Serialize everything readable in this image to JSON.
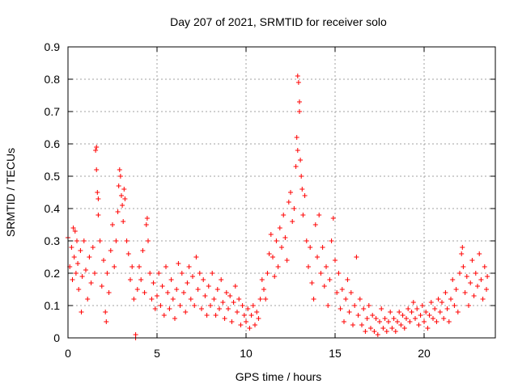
{
  "chart_data": {
    "type": "scatter",
    "title": "Day 207 of 2021, SRMTID for receiver solo",
    "xlabel": "GPS time / hours",
    "ylabel": "SRMTID / TECUs",
    "xlim": [
      0,
      24
    ],
    "ylim": [
      0,
      0.9
    ],
    "xticks": [
      0,
      5,
      10,
      15,
      20
    ],
    "yticks": [
      0,
      0.1,
      0.2,
      0.3,
      0.4,
      0.5,
      0.6,
      0.7,
      0.8,
      0.9
    ],
    "xtick_labels": [
      "0",
      "5",
      "10",
      "15",
      "20"
    ],
    "ytick_labels": [
      "0",
      "0.1",
      "0.2",
      "0.3",
      "0.4",
      "0.5",
      "0.6",
      "0.7",
      "0.8",
      "0.9"
    ],
    "grid": true,
    "marker": "+",
    "color": "#ff0000",
    "series": [
      {
        "name": "SRMTID",
        "points": [
          [
            0.0,
            0.31
          ],
          [
            0.1,
            0.22
          ],
          [
            0.2,
            0.28
          ],
          [
            0.25,
            0.18
          ],
          [
            0.3,
            0.34
          ],
          [
            0.35,
            0.25
          ],
          [
            0.4,
            0.33
          ],
          [
            0.45,
            0.2
          ],
          [
            0.5,
            0.3
          ],
          [
            0.55,
            0.23
          ],
          [
            0.6,
            0.15
          ],
          [
            0.7,
            0.27
          ],
          [
            0.75,
            0.08
          ],
          [
            0.8,
            0.19
          ],
          [
            0.9,
            0.3
          ],
          [
            1.0,
            0.21
          ],
          [
            1.1,
            0.12
          ],
          [
            1.2,
            0.25
          ],
          [
            1.3,
            0.17
          ],
          [
            1.4,
            0.28
          ],
          [
            1.5,
            0.2
          ],
          [
            1.55,
            0.58
          ],
          [
            1.6,
            0.59
          ],
          [
            1.6,
            0.52
          ],
          [
            1.65,
            0.45
          ],
          [
            1.7,
            0.43
          ],
          [
            1.7,
            0.38
          ],
          [
            1.8,
            0.3
          ],
          [
            1.9,
            0.16
          ],
          [
            2.0,
            0.24
          ],
          [
            2.1,
            0.08
          ],
          [
            2.15,
            0.05
          ],
          [
            2.2,
            0.2
          ],
          [
            2.3,
            0.14
          ],
          [
            2.4,
            0.27
          ],
          [
            2.5,
            0.35
          ],
          [
            2.6,
            0.22
          ],
          [
            2.7,
            0.3
          ],
          [
            2.8,
            0.39
          ],
          [
            2.85,
            0.47
          ],
          [
            2.9,
            0.52
          ],
          [
            2.95,
            0.5
          ],
          [
            3.0,
            0.44
          ],
          [
            3.05,
            0.41
          ],
          [
            3.1,
            0.36
          ],
          [
            3.15,
            0.46
          ],
          [
            3.2,
            0.43
          ],
          [
            3.3,
            0.3
          ],
          [
            3.4,
            0.26
          ],
          [
            3.5,
            0.18
          ],
          [
            3.6,
            0.22
          ],
          [
            3.7,
            0.12
          ],
          [
            3.8,
            0.0
          ],
          [
            3.8,
            0.01
          ],
          [
            3.9,
            0.15
          ],
          [
            4.0,
            0.22
          ],
          [
            4.1,
            0.18
          ],
          [
            4.2,
            0.27
          ],
          [
            4.3,
            0.14
          ],
          [
            4.4,
            0.35
          ],
          [
            4.45,
            0.37
          ],
          [
            4.5,
            0.3
          ],
          [
            4.6,
            0.2
          ],
          [
            4.7,
            0.12
          ],
          [
            4.8,
            0.17
          ],
          [
            4.9,
            0.09
          ],
          [
            5.0,
            0.13
          ],
          [
            5.1,
            0.2
          ],
          [
            5.2,
            0.1
          ],
          [
            5.3,
            0.16
          ],
          [
            5.4,
            0.07
          ],
          [
            5.5,
            0.22
          ],
          [
            5.6,
            0.14
          ],
          [
            5.7,
            0.09
          ],
          [
            5.8,
            0.18
          ],
          [
            5.9,
            0.12
          ],
          [
            6.0,
            0.06
          ],
          [
            6.1,
            0.15
          ],
          [
            6.2,
            0.23
          ],
          [
            6.3,
            0.1
          ],
          [
            6.4,
            0.2
          ],
          [
            6.5,
            0.14
          ],
          [
            6.6,
            0.08
          ],
          [
            6.7,
            0.17
          ],
          [
            6.8,
            0.22
          ],
          [
            6.9,
            0.12
          ],
          [
            7.0,
            0.19
          ],
          [
            7.1,
            0.1
          ],
          [
            7.2,
            0.25
          ],
          [
            7.3,
            0.15
          ],
          [
            7.4,
            0.2
          ],
          [
            7.5,
            0.09
          ],
          [
            7.6,
            0.18
          ],
          [
            7.7,
            0.13
          ],
          [
            7.8,
            0.07
          ],
          [
            7.9,
            0.16
          ],
          [
            8.0,
            0.1
          ],
          [
            8.1,
            0.2
          ],
          [
            8.2,
            0.12
          ],
          [
            8.3,
            0.07
          ],
          [
            8.4,
            0.15
          ],
          [
            8.5,
            0.09
          ],
          [
            8.6,
            0.18
          ],
          [
            8.7,
            0.11
          ],
          [
            8.8,
            0.06
          ],
          [
            8.9,
            0.14
          ],
          [
            9.0,
            0.09
          ],
          [
            9.1,
            0.13
          ],
          [
            9.2,
            0.05
          ],
          [
            9.3,
            0.11
          ],
          [
            9.4,
            0.16
          ],
          [
            9.5,
            0.08
          ],
          [
            9.6,
            0.12
          ],
          [
            9.7,
            0.04
          ],
          [
            9.8,
            0.1
          ],
          [
            9.9,
            0.07
          ],
          [
            10.0,
            0.05
          ],
          [
            10.1,
            0.09
          ],
          [
            10.2,
            0.03
          ],
          [
            10.3,
            0.07
          ],
          [
            10.4,
            0.1
          ],
          [
            10.5,
            0.04
          ],
          [
            10.6,
            0.08
          ],
          [
            10.7,
            0.06
          ],
          [
            10.8,
            0.12
          ],
          [
            10.9,
            0.18
          ],
          [
            11.0,
            0.15
          ],
          [
            11.1,
            0.12
          ],
          [
            11.2,
            0.2
          ],
          [
            11.3,
            0.26
          ],
          [
            11.4,
            0.32
          ],
          [
            11.5,
            0.25
          ],
          [
            11.6,
            0.19
          ],
          [
            11.7,
            0.3
          ],
          [
            11.8,
            0.22
          ],
          [
            11.9,
            0.34
          ],
          [
            12.0,
            0.28
          ],
          [
            12.1,
            0.38
          ],
          [
            12.2,
            0.31
          ],
          [
            12.3,
            0.24
          ],
          [
            12.4,
            0.42
          ],
          [
            12.5,
            0.45
          ],
          [
            12.6,
            0.36
          ],
          [
            12.7,
            0.4
          ],
          [
            12.8,
            0.53
          ],
          [
            12.85,
            0.62
          ],
          [
            12.9,
            0.58
          ],
          [
            12.9,
            0.81
          ],
          [
            12.95,
            0.79
          ],
          [
            13.0,
            0.73
          ],
          [
            13.0,
            0.7
          ],
          [
            13.05,
            0.55
          ],
          [
            13.1,
            0.5
          ],
          [
            13.15,
            0.46
          ],
          [
            13.2,
            0.38
          ],
          [
            13.3,
            0.44
          ],
          [
            13.4,
            0.3
          ],
          [
            13.5,
            0.22
          ],
          [
            13.6,
            0.28
          ],
          [
            13.7,
            0.17
          ],
          [
            13.8,
            0.12
          ],
          [
            13.9,
            0.35
          ],
          [
            14.0,
            0.25
          ],
          [
            14.1,
            0.38
          ],
          [
            14.2,
            0.2
          ],
          [
            14.3,
            0.28
          ],
          [
            14.4,
            0.16
          ],
          [
            14.5,
            0.22
          ],
          [
            14.6,
            0.1
          ],
          [
            14.7,
            0.18
          ],
          [
            14.8,
            0.3
          ],
          [
            14.9,
            0.37
          ],
          [
            15.0,
            0.24
          ],
          [
            15.1,
            0.14
          ],
          [
            15.2,
            0.2
          ],
          [
            15.3,
            0.09
          ],
          [
            15.4,
            0.15
          ],
          [
            15.5,
            0.05
          ],
          [
            15.6,
            0.12
          ],
          [
            15.7,
            0.18
          ],
          [
            15.8,
            0.08
          ],
          [
            15.9,
            0.14
          ],
          [
            16.0,
            0.04
          ],
          [
            16.1,
            0.1
          ],
          [
            16.2,
            0.25
          ],
          [
            16.3,
            0.07
          ],
          [
            16.4,
            0.12
          ],
          [
            16.5,
            0.04
          ],
          [
            16.6,
            0.09
          ],
          [
            16.7,
            0.02
          ],
          [
            16.8,
            0.06
          ],
          [
            16.9,
            0.1
          ],
          [
            17.0,
            0.03
          ],
          [
            17.1,
            0.07
          ],
          [
            17.2,
            0.02
          ],
          [
            17.3,
            0.06
          ],
          [
            17.4,
            0.01
          ],
          [
            17.5,
            0.05
          ],
          [
            17.6,
            0.09
          ],
          [
            17.7,
            0.03
          ],
          [
            17.8,
            0.06
          ],
          [
            17.9,
            0.02
          ],
          [
            18.0,
            0.05
          ],
          [
            18.1,
            0.08
          ],
          [
            18.2,
            0.03
          ],
          [
            18.3,
            0.06
          ],
          [
            18.4,
            0.02
          ],
          [
            18.5,
            0.05
          ],
          [
            18.6,
            0.08
          ],
          [
            18.7,
            0.04
          ],
          [
            18.8,
            0.07
          ],
          [
            18.9,
            0.03
          ],
          [
            19.0,
            0.06
          ],
          [
            19.1,
            0.09
          ],
          [
            19.2,
            0.05
          ],
          [
            19.3,
            0.08
          ],
          [
            19.4,
            0.11
          ],
          [
            19.5,
            0.06
          ],
          [
            19.6,
            0.09
          ],
          [
            19.7,
            0.04
          ],
          [
            19.8,
            0.07
          ],
          [
            19.9,
            0.1
          ],
          [
            20.0,
            0.05
          ],
          [
            20.1,
            0.08
          ],
          [
            20.2,
            0.03
          ],
          [
            20.3,
            0.07
          ],
          [
            20.4,
            0.11
          ],
          [
            20.5,
            0.06
          ],
          [
            20.6,
            0.09
          ],
          [
            20.7,
            0.05
          ],
          [
            20.8,
            0.12
          ],
          [
            20.9,
            0.08
          ],
          [
            21.0,
            0.11
          ],
          [
            21.1,
            0.06
          ],
          [
            21.2,
            0.14
          ],
          [
            21.3,
            0.09
          ],
          [
            21.4,
            0.05
          ],
          [
            21.5,
            0.12
          ],
          [
            21.6,
            0.18
          ],
          [
            21.7,
            0.1
          ],
          [
            21.8,
            0.15
          ],
          [
            21.9,
            0.08
          ],
          [
            22.0,
            0.2
          ],
          [
            22.1,
            0.26
          ],
          [
            22.15,
            0.28
          ],
          [
            22.2,
            0.22
          ],
          [
            22.3,
            0.14
          ],
          [
            22.4,
            0.19
          ],
          [
            22.5,
            0.1
          ],
          [
            22.6,
            0.17
          ],
          [
            22.7,
            0.24
          ],
          [
            22.8,
            0.13
          ],
          [
            22.9,
            0.2
          ],
          [
            23.0,
            0.16
          ],
          [
            23.1,
            0.26
          ],
          [
            23.2,
            0.18
          ],
          [
            23.3,
            0.12
          ],
          [
            23.4,
            0.22
          ],
          [
            23.5,
            0.15
          ],
          [
            23.55,
            0.19
          ]
        ]
      }
    ]
  }
}
